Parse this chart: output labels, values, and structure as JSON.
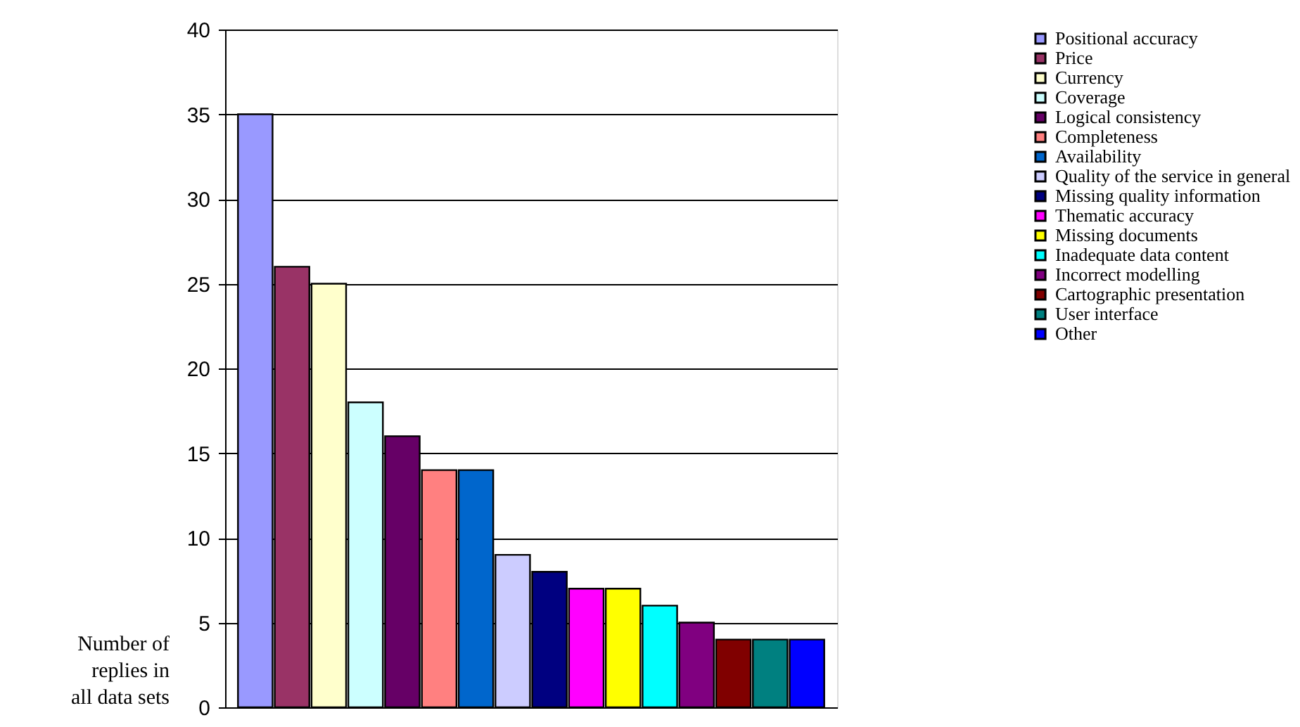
{
  "chart_data": {
    "type": "bar",
    "ylabel": "Number of replies in all data sets",
    "stacked": true,
    "categories": [
      null,
      null,
      null,
      null,
      null,
      null,
      null,
      null,
      null,
      null,
      null,
      null,
      null,
      null,
      null,
      null
    ],
    "series": [
      {
        "name": "Positional accuracy",
        "color": "#9999ff",
        "values": [
          35,
          null,
          null,
          null,
          null,
          null,
          null,
          null,
          null,
          null,
          null,
          null,
          null,
          null,
          null,
          null
        ]
      },
      {
        "name": "Price",
        "color": "#993366",
        "values": [
          null,
          26,
          null,
          null,
          null,
          null,
          null,
          null,
          null,
          null,
          null,
          null,
          null,
          null,
          null,
          null
        ]
      },
      {
        "name": "Currency",
        "color": "#ffffcc",
        "values": [
          null,
          null,
          25,
          null,
          null,
          null,
          null,
          null,
          null,
          null,
          null,
          null,
          null,
          null,
          null,
          null
        ]
      },
      {
        "name": "Coverage",
        "color": "#ccffff",
        "values": [
          null,
          null,
          null,
          18,
          null,
          null,
          null,
          null,
          null,
          null,
          null,
          null,
          null,
          null,
          null,
          null
        ]
      },
      {
        "name": "Logical consistency",
        "color": "#660066",
        "values": [
          null,
          null,
          null,
          null,
          16,
          null,
          null,
          null,
          null,
          null,
          null,
          null,
          null,
          null,
          null,
          null
        ]
      },
      {
        "name": "Completeness",
        "color": "#ff8080",
        "values": [
          null,
          null,
          null,
          null,
          null,
          14,
          null,
          null,
          null,
          null,
          null,
          null,
          null,
          null,
          null,
          null
        ]
      },
      {
        "name": "Availability",
        "color": "#0066cc",
        "values": [
          null,
          null,
          null,
          null,
          null,
          null,
          14,
          null,
          null,
          null,
          null,
          null,
          null,
          null,
          null,
          null
        ]
      },
      {
        "name": "Quality of the service in general",
        "color": "#ccccff",
        "values": [
          null,
          null,
          null,
          null,
          null,
          null,
          null,
          9,
          null,
          null,
          null,
          null,
          null,
          null,
          null,
          null
        ]
      },
      {
        "name": "Missing quality information",
        "color": "#000080",
        "values": [
          null,
          null,
          null,
          null,
          null,
          null,
          null,
          null,
          8,
          null,
          null,
          null,
          null,
          null,
          null,
          null
        ]
      },
      {
        "name": "Thematic accuracy",
        "color": "#ff00ff",
        "values": [
          null,
          null,
          null,
          null,
          null,
          null,
          null,
          null,
          null,
          7,
          null,
          null,
          null,
          null,
          null,
          null
        ]
      },
      {
        "name": "Missing documents",
        "color": "#ffff00",
        "values": [
          null,
          null,
          null,
          null,
          null,
          null,
          null,
          null,
          null,
          null,
          7,
          null,
          null,
          null,
          null,
          null
        ]
      },
      {
        "name": "Inadequate data content",
        "color": "#00ffff",
        "values": [
          null,
          null,
          null,
          null,
          null,
          null,
          null,
          null,
          null,
          null,
          null,
          6,
          null,
          null,
          null,
          null
        ]
      },
      {
        "name": "Incorrect modelling",
        "color": "#800080",
        "values": [
          null,
          null,
          null,
          null,
          null,
          null,
          null,
          null,
          null,
          null,
          null,
          null,
          5,
          null,
          null,
          null
        ]
      },
      {
        "name": "Cartographic presentation",
        "color": "#800000",
        "values": [
          null,
          null,
          null,
          null,
          null,
          null,
          null,
          null,
          null,
          null,
          null,
          null,
          null,
          4,
          null,
          null
        ]
      },
      {
        "name": "User interface",
        "color": "#008080",
        "values": [
          null,
          null,
          null,
          null,
          null,
          null,
          null,
          null,
          null,
          null,
          null,
          null,
          null,
          null,
          4,
          null
        ]
      },
      {
        "name": "Other",
        "color": "#0000ff",
        "values": [
          null,
          null,
          null,
          null,
          null,
          null,
          null,
          null,
          null,
          null,
          null,
          null,
          null,
          null,
          null,
          4
        ]
      }
    ],
    "ylim": [
      0,
      40
    ],
    "yticks": [
      0,
      5,
      10,
      15,
      20,
      25,
      30,
      35,
      40
    ],
    "grid": "y",
    "legend": "right",
    "tick_labels": "y"
  }
}
